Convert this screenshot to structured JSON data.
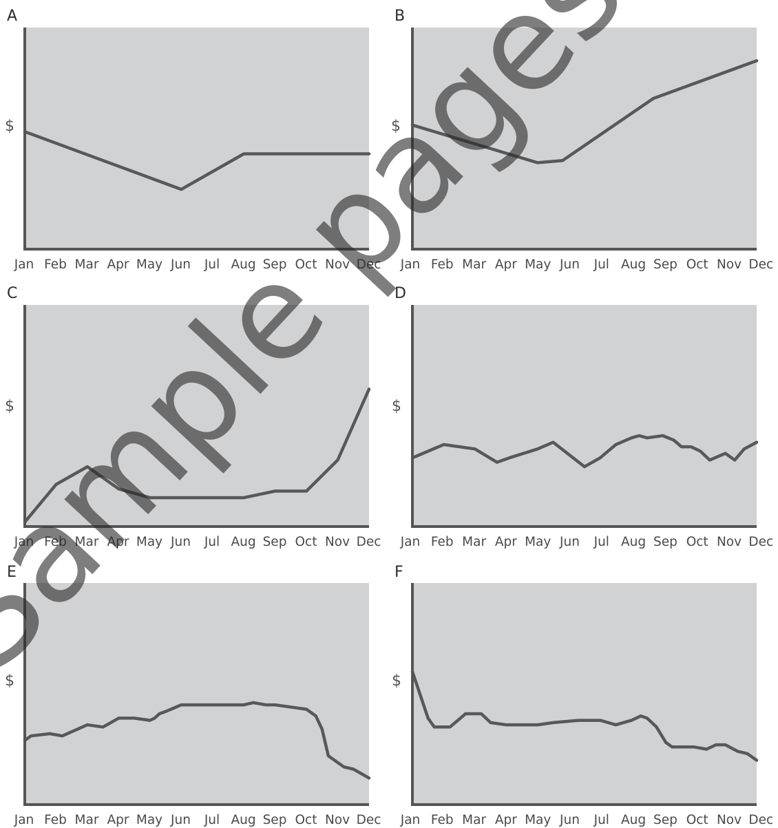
{
  "watermark": "Sample pages",
  "chart_data": [
    {
      "panel": "A",
      "type": "line",
      "ylabel": "$",
      "categories": [
        "Jan",
        "Feb",
        "Mar",
        "Apr",
        "May",
        "Jun",
        "Jul",
        "Aug",
        "Sep",
        "Oct",
        "Nov",
        "Dec"
      ],
      "ylim": [
        0,
        100
      ],
      "grid": false,
      "series": [
        {
          "x": [
            0,
            5,
            7,
            11
          ],
          "y": [
            53,
            27,
            43,
            43
          ]
        }
      ]
    },
    {
      "panel": "B",
      "type": "line",
      "ylabel": "$",
      "categories": [
        "Jan",
        "Feb",
        "Mar",
        "Apr",
        "May",
        "Jun",
        "Jul",
        "Aug",
        "Sep",
        "Oct",
        "Nov",
        "Dec"
      ],
      "ylim": [
        0,
        100
      ],
      "grid": false,
      "series": [
        {
          "x": [
            0,
            4,
            4.8,
            7.7,
            11
          ],
          "y": [
            56,
            39,
            40,
            68,
            85
          ]
        }
      ]
    },
    {
      "panel": "C",
      "type": "line",
      "ylabel": "$",
      "categories": [
        "Jan",
        "Feb",
        "Mar",
        "Apr",
        "May",
        "Jun",
        "Jul",
        "Aug",
        "Sep",
        "Oct",
        "Nov",
        "Dec"
      ],
      "ylim": [
        0,
        100
      ],
      "grid": false,
      "series": [
        {
          "x": [
            0,
            1,
            2,
            3,
            4,
            5,
            6,
            7,
            8,
            9,
            10,
            11
          ],
          "y": [
            2,
            19,
            27,
            17,
            13,
            13,
            13,
            13,
            16,
            16,
            30,
            62
          ]
        }
      ]
    },
    {
      "panel": "D",
      "type": "line",
      "ylabel": "$",
      "categories": [
        "Jan",
        "Feb",
        "Mar",
        "Apr",
        "May",
        "Jun",
        "Jul",
        "Aug",
        "Sep",
        "Oct",
        "Nov",
        "Dec"
      ],
      "ylim": [
        0,
        100
      ],
      "grid": false,
      "series": [
        {
          "x": [
            0,
            1,
            2,
            2.7,
            3.1,
            4,
            4.5,
            5.5,
            6,
            6.5,
            7,
            7.25,
            7.5,
            8,
            8.35,
            8.6,
            8.9,
            9.2,
            9.5,
            10,
            10.3,
            10.6,
            11
          ],
          "y": [
            31,
            37,
            35,
            29,
            31,
            35,
            38,
            27,
            31,
            37,
            40,
            41,
            40,
            41,
            39,
            36,
            36,
            34,
            30,
            33,
            30,
            35,
            38
          ]
        }
      ]
    },
    {
      "panel": "E",
      "type": "line",
      "ylabel": "$",
      "categories": [
        "Jan",
        "Feb",
        "Mar",
        "Apr",
        "May",
        "Jun",
        "Jul",
        "Aug",
        "Sep",
        "Oct",
        "Nov",
        "Dec"
      ],
      "ylim": [
        0,
        100
      ],
      "grid": false,
      "series": [
        {
          "x": [
            0,
            0.2,
            0.8,
            1.2,
            2,
            2.5,
            3,
            3.5,
            4,
            4.15,
            4.3,
            4.5,
            5,
            6,
            7,
            7.3,
            7.7,
            8,
            8.5,
            9,
            9.3,
            9.5,
            9.7,
            10.2,
            10.5,
            11
          ],
          "y": [
            29,
            31,
            32,
            31,
            36,
            35,
            39,
            39,
            38,
            39,
            41,
            42,
            45,
            45,
            45,
            46,
            45,
            45,
            44,
            43,
            40,
            34,
            22,
            17,
            16,
            12
          ]
        }
      ]
    },
    {
      "panel": "F",
      "type": "line",
      "ylabel": "$",
      "categories": [
        "Jan",
        "Feb",
        "Mar",
        "Apr",
        "May",
        "Jun",
        "Jul",
        "Aug",
        "Sep",
        "Oct",
        "Nov",
        "Dec"
      ],
      "ylim": [
        0,
        100
      ],
      "grid": false,
      "series": [
        {
          "x": [
            0,
            0.5,
            0.7,
            1.2,
            1.7,
            2.2,
            2.5,
            3,
            4,
            4.5,
            5.3,
            6,
            6.5,
            7,
            7.3,
            7.5,
            7.8,
            8.1,
            8.3,
            8.7,
            9,
            9.4,
            9.7,
            10,
            10.4,
            10.7,
            11
          ],
          "y": [
            60,
            39,
            35,
            35,
            41,
            41,
            37,
            36,
            36,
            37,
            38,
            38,
            36,
            38,
            40,
            39,
            35,
            28,
            26,
            26,
            26,
            25,
            27,
            27,
            24,
            23,
            20
          ]
        }
      ]
    }
  ]
}
